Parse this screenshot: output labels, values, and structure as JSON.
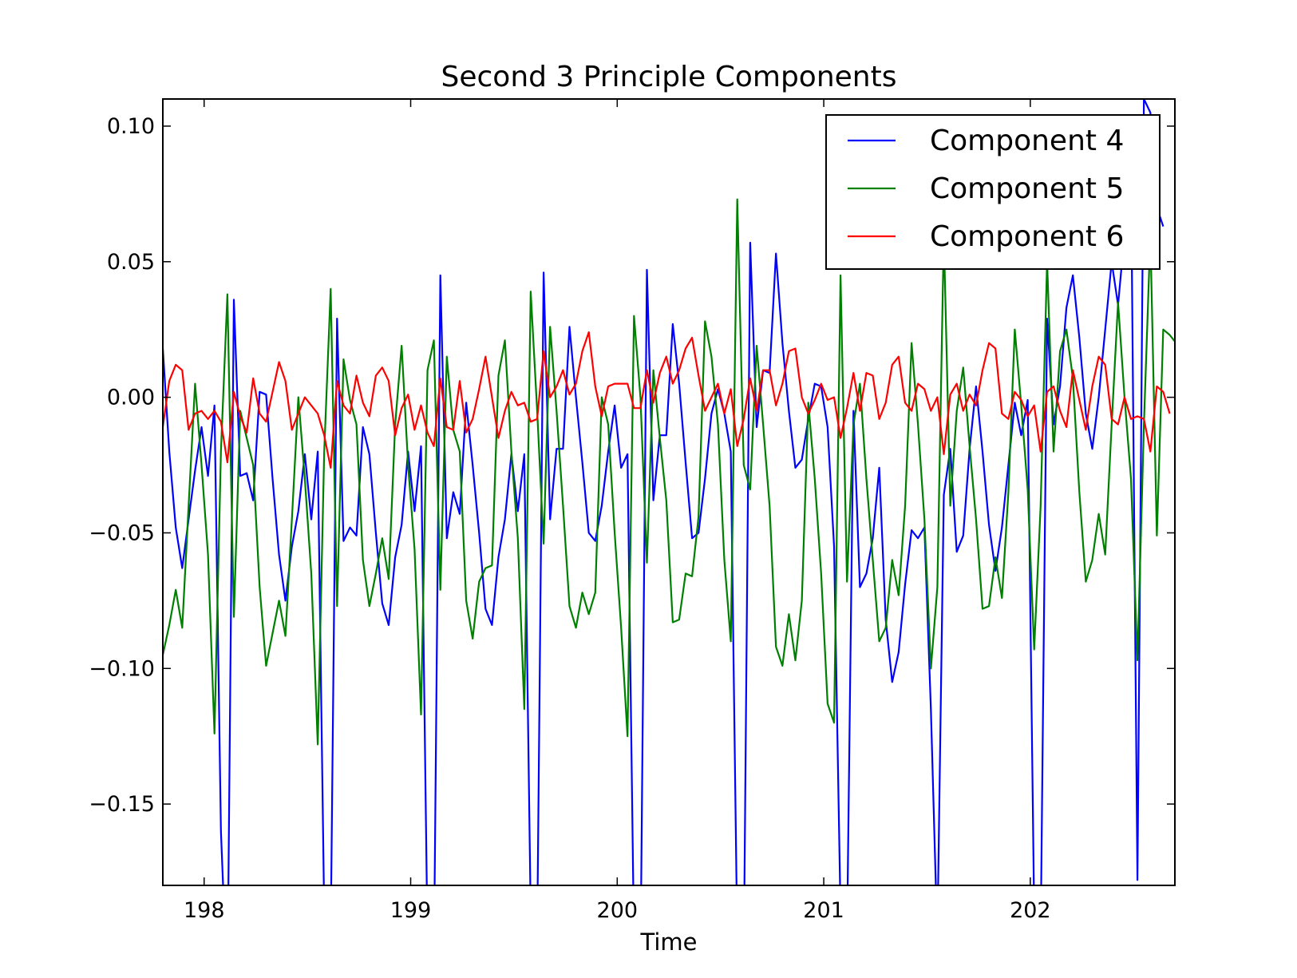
{
  "chart_data": {
    "type": "line",
    "title": "Second 3 Principle Components",
    "xlabel": "Time",
    "ylabel": "",
    "xlim": [
      197.8,
      202.7
    ],
    "ylim": [
      -0.18,
      0.11
    ],
    "xticks": [
      198,
      199,
      200,
      201,
      202
    ],
    "xtick_labels": [
      "198",
      "199",
      "200",
      "201",
      "202"
    ],
    "yticks": [
      0.1,
      0.05,
      0.0,
      -0.05,
      -0.1,
      -0.15
    ],
    "ytick_labels": [
      "0.10",
      "0.05",
      "0.00",
      "−0.05",
      "−0.10",
      "−0.15"
    ],
    "grid": false,
    "legend_position": "top-right",
    "x_start": 197.8,
    "x_step": 0.03125,
    "series": [
      {
        "name": "Component 4",
        "color": "#0000ff",
        "values": [
          0.018,
          -0.02,
          -0.048,
          -0.063,
          -0.045,
          -0.027,
          -0.011,
          -0.029,
          -0.003,
          -0.16,
          -0.22,
          0.036,
          -0.029,
          -0.028,
          -0.038,
          0.002,
          0.001,
          -0.03,
          -0.058,
          -0.075,
          -0.055,
          -0.042,
          -0.021,
          -0.045,
          -0.02,
          -0.19,
          -0.2,
          0.029,
          -0.053,
          -0.048,
          -0.051,
          -0.011,
          -0.021,
          -0.05,
          -0.076,
          -0.084,
          -0.059,
          -0.047,
          -0.02,
          -0.042,
          -0.018,
          -0.2,
          -0.21,
          0.045,
          -0.052,
          -0.035,
          -0.043,
          -0.002,
          -0.025,
          -0.05,
          -0.078,
          -0.084,
          -0.059,
          -0.045,
          -0.021,
          -0.042,
          -0.021,
          -0.19,
          -0.2,
          0.046,
          -0.045,
          -0.019,
          -0.019,
          0.026,
          0.0,
          -0.024,
          -0.05,
          -0.053,
          -0.04,
          -0.02,
          -0.003,
          -0.026,
          -0.021,
          -0.2,
          -0.21,
          0.047,
          -0.038,
          -0.014,
          -0.014,
          0.027,
          0.005,
          -0.024,
          -0.052,
          -0.05,
          -0.03,
          -0.006,
          0.003,
          -0.006,
          -0.02,
          -0.2,
          -0.21,
          0.057,
          -0.011,
          0.01,
          0.009,
          0.053,
          0.02,
          -0.005,
          -0.026,
          -0.023,
          -0.008,
          0.005,
          0.004,
          -0.011,
          -0.055,
          -0.19,
          -0.2,
          -0.005,
          -0.07,
          -0.065,
          -0.052,
          -0.026,
          -0.082,
          -0.105,
          -0.094,
          -0.069,
          -0.049,
          -0.052,
          -0.048,
          -0.115,
          -0.2,
          -0.036,
          -0.019,
          -0.057,
          -0.051,
          -0.019,
          0.004,
          -0.02,
          -0.047,
          -0.064,
          -0.048,
          -0.025,
          -0.002,
          -0.014,
          -0.001,
          -0.19,
          -0.2,
          0.029,
          -0.01,
          0.004,
          0.033,
          0.045,
          0.022,
          -0.006,
          -0.019,
          0.0,
          0.025,
          0.05,
          0.034,
          0.06,
          0.085,
          -0.178,
          0.11,
          0.105,
          0.07,
          0.063
        ]
      },
      {
        "name": "Component 5",
        "color": "#008000",
        "values": [
          -0.095,
          -0.084,
          -0.071,
          -0.085,
          -0.04,
          0.005,
          -0.025,
          -0.058,
          -0.124,
          -0.02,
          0.038,
          -0.081,
          -0.005,
          -0.015,
          -0.025,
          -0.07,
          -0.099,
          -0.087,
          -0.075,
          -0.088,
          -0.045,
          0.0,
          -0.03,
          -0.065,
          -0.128,
          -0.02,
          0.04,
          -0.077,
          0.014,
          -0.001,
          -0.01,
          -0.06,
          -0.077,
          -0.065,
          -0.052,
          -0.067,
          -0.01,
          0.019,
          -0.025,
          -0.056,
          -0.117,
          0.01,
          0.021,
          -0.071,
          0.015,
          -0.012,
          -0.02,
          -0.075,
          -0.089,
          -0.068,
          -0.063,
          -0.062,
          0.008,
          0.021,
          -0.02,
          -0.052,
          -0.115,
          0.039,
          -0.005,
          -0.054,
          0.026,
          -0.005,
          -0.04,
          -0.077,
          -0.085,
          -0.072,
          -0.08,
          -0.072,
          0.0,
          -0.01,
          -0.05,
          -0.085,
          -0.125,
          0.03,
          0.0,
          -0.061,
          0.01,
          -0.015,
          -0.038,
          -0.083,
          -0.082,
          -0.065,
          -0.066,
          -0.044,
          0.028,
          0.015,
          -0.01,
          -0.06,
          -0.09,
          0.073,
          -0.025,
          -0.034,
          0.019,
          -0.01,
          -0.04,
          -0.092,
          -0.099,
          -0.08,
          -0.097,
          -0.075,
          -0.002,
          -0.03,
          -0.065,
          -0.113,
          -0.12,
          0.045,
          -0.068,
          -0.01,
          0.005,
          -0.03,
          -0.06,
          -0.09,
          -0.085,
          -0.06,
          -0.073,
          -0.04,
          0.02,
          -0.01,
          -0.045,
          -0.1,
          -0.07,
          0.06,
          -0.04,
          -0.005,
          0.011,
          -0.018,
          -0.045,
          -0.078,
          -0.077,
          -0.059,
          -0.074,
          -0.035,
          0.025,
          -0.003,
          -0.034,
          -0.093,
          -0.04,
          0.05,
          -0.02,
          0.017,
          0.025,
          0.007,
          -0.035,
          -0.068,
          -0.06,
          -0.043,
          -0.058,
          -0.01,
          0.035,
          0.0,
          -0.03,
          -0.097,
          -0.01,
          0.06,
          -0.051,
          0.025,
          0.023,
          0.02
        ]
      },
      {
        "name": "Component 6",
        "color": "#ff0000",
        "values": [
          -0.011,
          0.006,
          0.012,
          0.01,
          -0.012,
          -0.006,
          -0.005,
          -0.008,
          -0.005,
          -0.009,
          -0.024,
          0.002,
          -0.007,
          -0.013,
          0.007,
          -0.006,
          -0.009,
          0.002,
          0.013,
          0.006,
          -0.012,
          -0.006,
          0.0,
          -0.003,
          -0.006,
          -0.014,
          -0.026,
          0.006,
          -0.003,
          -0.006,
          0.008,
          -0.002,
          -0.007,
          0.008,
          0.011,
          0.006,
          -0.014,
          -0.004,
          0.001,
          -0.012,
          -0.003,
          -0.013,
          -0.018,
          0.007,
          -0.011,
          -0.012,
          0.006,
          -0.013,
          -0.008,
          0.003,
          0.015,
          0.0,
          -0.015,
          -0.005,
          0.002,
          -0.003,
          -0.002,
          -0.009,
          -0.008,
          0.017,
          0.0,
          0.004,
          0.01,
          0.001,
          0.005,
          0.017,
          0.024,
          0.004,
          -0.007,
          0.004,
          0.005,
          0.005,
          0.005,
          -0.004,
          -0.004,
          0.01,
          -0.002,
          0.009,
          0.015,
          0.005,
          0.01,
          0.018,
          0.022,
          0.008,
          -0.005,
          0.0,
          0.005,
          -0.006,
          0.003,
          -0.018,
          -0.008,
          0.007,
          -0.005,
          0.01,
          0.01,
          -0.003,
          0.005,
          0.017,
          0.018,
          0.0,
          -0.006,
          -0.001,
          0.005,
          -0.001,
          0.0,
          -0.015,
          -0.004,
          0.009,
          -0.005,
          0.009,
          0.008,
          -0.008,
          -0.002,
          0.012,
          0.015,
          -0.002,
          -0.005,
          0.005,
          0.003,
          -0.005,
          0.0,
          -0.021,
          0.001,
          0.005,
          -0.005,
          0.001,
          -0.003,
          0.01,
          0.02,
          0.018,
          -0.006,
          -0.008,
          0.002,
          -0.001,
          -0.007,
          -0.003,
          -0.02,
          0.002,
          0.004,
          -0.005,
          -0.011,
          0.01,
          -0.001,
          -0.012,
          0.004,
          0.015,
          0.012,
          -0.008,
          -0.01,
          0.0,
          -0.008,
          -0.007,
          -0.008,
          -0.02,
          0.004,
          0.002,
          -0.006
        ]
      }
    ]
  }
}
